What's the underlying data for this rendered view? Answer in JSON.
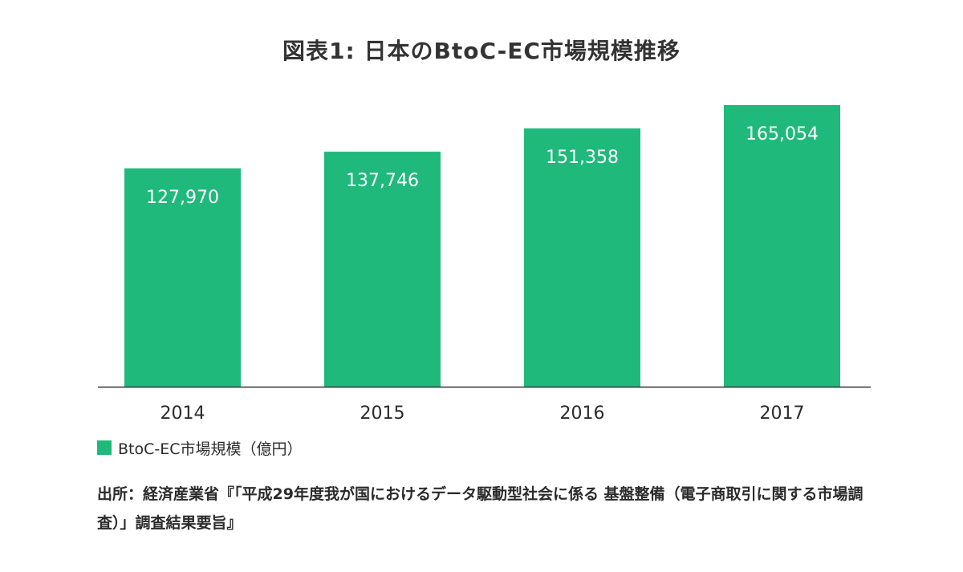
{
  "chart_data": {
    "type": "bar",
    "title": "図表1: 日本のBtoC-EC市場規模推移",
    "categories": [
      "2014",
      "2015",
      "2016",
      "2017"
    ],
    "series": [
      {
        "name": "BtoC-EC市場規模（億円）",
        "values": [
          127970,
          137746,
          151358,
          165054
        ],
        "value_labels": [
          "127,970",
          "137,746",
          "151,358",
          "165,054"
        ]
      }
    ],
    "xlabel": "",
    "ylabel": "",
    "ylim": [
      0,
      165054
    ],
    "grid": false,
    "legend": "bottom-left",
    "colors": {
      "bar": "#1fb97c",
      "axis": "#333333"
    }
  },
  "source": "出所：経済産業省『「平成29年度我が国におけるデータ駆動型社会に係る 基盤整備（電子商取引に関する市場調査）」調査結果要旨』"
}
